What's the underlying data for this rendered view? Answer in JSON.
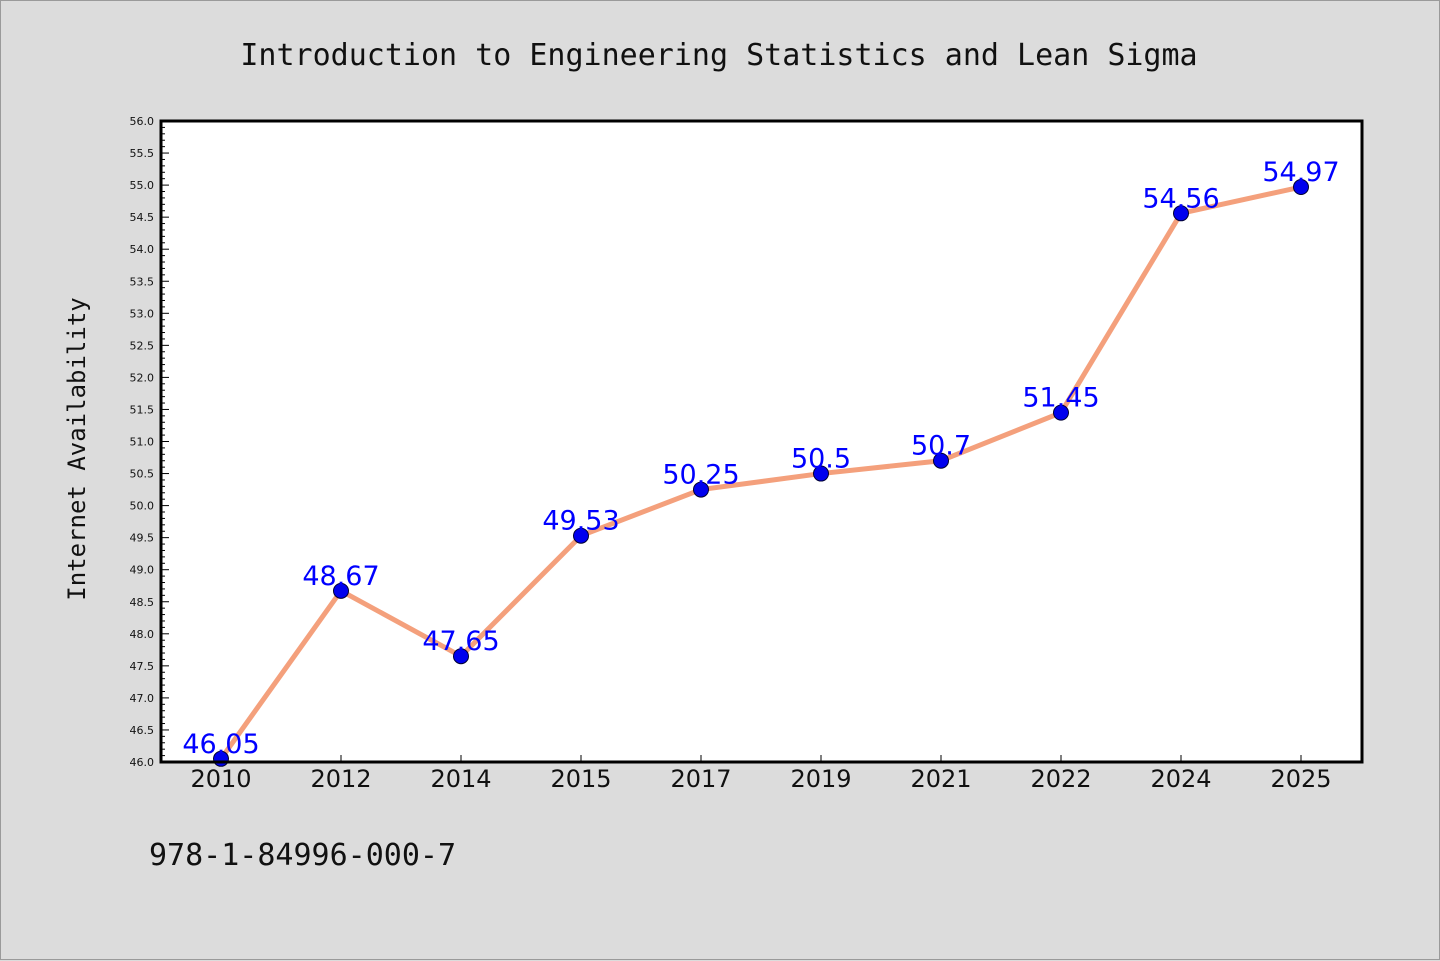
{
  "chart_data": {
    "type": "line",
    "title": "Introduction to Engineering Statistics and Lean Sigma",
    "xlabel": "",
    "ylabel": "Internet Availability",
    "categories": [
      "2010",
      "2012",
      "2014",
      "2015",
      "2017",
      "2019",
      "2021",
      "2022",
      "2024",
      "2025"
    ],
    "series": [
      {
        "values": [
          46.05,
          48.67,
          47.65,
          49.53,
          50.25,
          50.5,
          50.7,
          51.45,
          54.56,
          54.97
        ],
        "data_labels": [
          "46.05",
          "48.67",
          "47.65",
          "49.53",
          "50.25",
          "50.5",
          "50.7",
          "51.45",
          "54.56",
          "54.97"
        ],
        "line_color": "#f4a07c",
        "marker_color": "#0000ee",
        "label_color": "#0000ff"
      }
    ],
    "ylim": [
      46.0,
      56.0
    ],
    "ytick_step": 0.5,
    "grid": false,
    "legend": "none",
    "background_color": "#dcdcdc",
    "plot_background_color": "#ffffff"
  },
  "footer": {
    "isbn": "978-1-84996-000-7"
  }
}
